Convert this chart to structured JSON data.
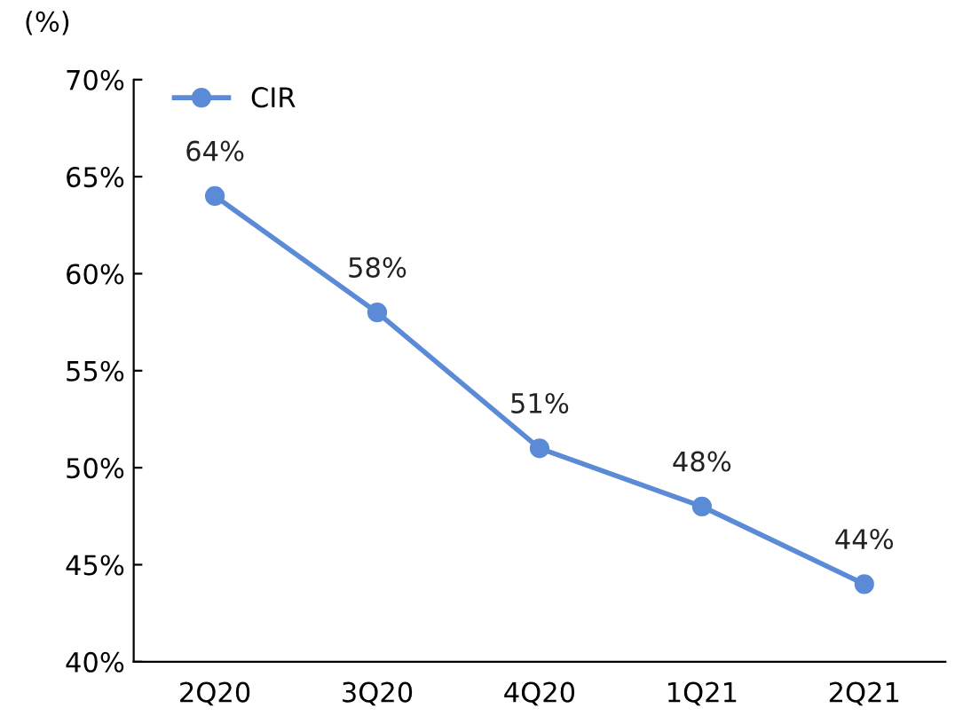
{
  "chart_data": {
    "type": "line",
    "ylabel": "(%)",
    "categories": [
      "2Q20",
      "3Q20",
      "4Q20",
      "1Q21",
      "2Q21"
    ],
    "series": [
      {
        "name": "CIR",
        "color": "#5b8bd6",
        "values": [
          64,
          58,
          51,
          48,
          44
        ],
        "value_labels": [
          "64%",
          "58%",
          "51%",
          "48%",
          "44%"
        ]
      }
    ],
    "ylim": [
      40,
      70
    ],
    "yticks": [
      {
        "value": 40,
        "label": "40%"
      },
      {
        "value": 45,
        "label": "45%"
      },
      {
        "value": 50,
        "label": "50%"
      },
      {
        "value": 55,
        "label": "55%"
      },
      {
        "value": 60,
        "label": "60%"
      },
      {
        "value": 65,
        "label": "65%"
      },
      {
        "value": 70,
        "label": "70%"
      }
    ],
    "grid": false,
    "legend": "top left",
    "marker": "circle",
    "line_style": "solid"
  }
}
